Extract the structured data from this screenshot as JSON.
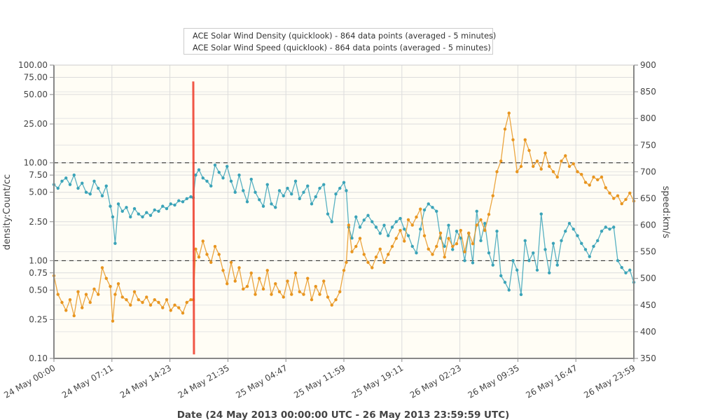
{
  "chart_data": {
    "type": "line",
    "title": "",
    "legend": {
      "placement": "top-center",
      "entries": [
        {
          "label": "ACE Solar Wind Density (quicklook) - 864 data points (averaged - 5 minutes)",
          "color": "#3aa3b8"
        },
        {
          "label": "ACE Solar Wind Speed (quicklook) - 864 data points (averaged - 5 minutes)",
          "color": "#e8951f"
        }
      ]
    },
    "xlabel": "Date (24 May 2013 00:00:00 UTC - 26 May 2013 23:59:59 UTC)",
    "x_range_hours": [
      0,
      72
    ],
    "x_ticks": [
      {
        "hour": 0,
        "label": "24 May 00:00"
      },
      {
        "hour": 7.2,
        "label": "24 May 07:11"
      },
      {
        "hour": 14.4,
        "label": "24 May 14:23"
      },
      {
        "hour": 21.6,
        "label": "24 May 21:35"
      },
      {
        "hour": 28.8,
        "label": "25 May 04:47"
      },
      {
        "hour": 36.0,
        "label": "25 May 11:59"
      },
      {
        "hour": 43.2,
        "label": "25 May 19:11"
      },
      {
        "hour": 50.4,
        "label": "26 May 02:23"
      },
      {
        "hour": 57.6,
        "label": "26 May 09:35"
      },
      {
        "hour": 64.8,
        "label": "26 May 16:47"
      },
      {
        "hour": 72.0,
        "label": "26 May 23:59"
      }
    ],
    "y_left": {
      "label": "density:Count/cc",
      "scale": "log",
      "range": [
        0.1,
        100
      ],
      "ticks": [
        {
          "value": 100,
          "label": "100.00"
        },
        {
          "value": 75,
          "label": "75.00"
        },
        {
          "value": 50,
          "label": "50.00"
        },
        {
          "value": 25,
          "label": "25.00"
        },
        {
          "value": 10,
          "label": "10.00"
        },
        {
          "value": 7.5,
          "label": "7.50"
        },
        {
          "value": 5,
          "label": "5.00"
        },
        {
          "value": 2.5,
          "label": "2.50"
        },
        {
          "value": 1,
          "label": "1.00"
        },
        {
          "value": 0.75,
          "label": "0.75"
        },
        {
          "value": 0.5,
          "label": "0.50"
        },
        {
          "value": 0.25,
          "label": "0.25"
        },
        {
          "value": 0.1,
          "label": "0.10"
        }
      ],
      "reference_lines": [
        10,
        1
      ]
    },
    "y_right": {
      "label": "speed:km/s",
      "scale": "linear",
      "range": [
        350,
        900
      ],
      "ticks": [
        900,
        850,
        800,
        750,
        700,
        650,
        600,
        550,
        500,
        450,
        400,
        350
      ]
    },
    "markers": [
      {
        "type": "vertical-line",
        "hour": 17.3,
        "color": "#ee4433",
        "from_density": 0.11,
        "to_density": 68
      }
    ],
    "series": [
      {
        "name": "ACE Solar Wind Density",
        "axis": "left",
        "color": "#3aa3b8",
        "x_hours": [
          0,
          0.5,
          1,
          1.5,
          2,
          2.5,
          3,
          3.5,
          4,
          4.5,
          5,
          5.5,
          6,
          6.5,
          7,
          7.3,
          7.6,
          8,
          8.5,
          9,
          9.5,
          10,
          10.5,
          11,
          11.5,
          12,
          12.5,
          13,
          13.5,
          14,
          14.5,
          15,
          15.5,
          16,
          16.5,
          17,
          17.3,
          17.6,
          18,
          18.5,
          19,
          19.5,
          20,
          20.5,
          21,
          21.5,
          22,
          22.5,
          23,
          23.5,
          24,
          24.5,
          25,
          25.5,
          26,
          26.5,
          27,
          27.5,
          28,
          28.5,
          29,
          29.5,
          30,
          30.5,
          31,
          31.5,
          32,
          32.5,
          33,
          33.5,
          34,
          34.5,
          35,
          35.5,
          36,
          36.3,
          36.6,
          37,
          37.5,
          38,
          38.5,
          39,
          39.5,
          40,
          40.5,
          41,
          41.5,
          42,
          42.5,
          43,
          43.5,
          44,
          44.5,
          45,
          45.5,
          46,
          46.5,
          47,
          47.5,
          48,
          48.5,
          49,
          49.5,
          50,
          50.5,
          51,
          51.5,
          52,
          52.5,
          53,
          53.5,
          54,
          54.5,
          55,
          55.5,
          56,
          56.5,
          57,
          57.5,
          58,
          58.5,
          59,
          59.5,
          60,
          60.5,
          61,
          61.5,
          62,
          62.5,
          63,
          63.5,
          64,
          64.5,
          65,
          65.5,
          66,
          66.5,
          67,
          67.5,
          68,
          68.5,
          69,
          69.5,
          70,
          70.5,
          71,
          71.5,
          72
        ],
        "values": [
          6.0,
          5.5,
          6.5,
          7.0,
          6.0,
          7.5,
          5.5,
          6.2,
          5.0,
          4.8,
          6.5,
          5.5,
          4.6,
          5.8,
          3.6,
          2.8,
          1.5,
          3.8,
          3.2,
          3.5,
          2.8,
          3.4,
          3.0,
          2.8,
          3.1,
          2.9,
          3.3,
          3.2,
          3.6,
          3.4,
          3.8,
          3.7,
          4.1,
          4.0,
          4.3,
          4.5,
          4.4,
          7.5,
          8.5,
          7.0,
          6.5,
          5.8,
          9.5,
          8.0,
          7.0,
          9.2,
          6.5,
          5.0,
          7.5,
          5.2,
          4.0,
          6.8,
          5.0,
          4.2,
          3.6,
          6.0,
          3.8,
          3.5,
          5.2,
          4.6,
          5.5,
          4.8,
          6.5,
          4.3,
          5.0,
          5.8,
          3.8,
          4.5,
          5.5,
          6.0,
          3.0,
          2.5,
          4.8,
          5.5,
          6.3,
          5.2,
          2.2,
          1.7,
          2.8,
          2.2,
          2.6,
          2.9,
          2.5,
          2.2,
          1.9,
          2.3,
          1.8,
          2.2,
          2.5,
          2.7,
          2.1,
          1.8,
          1.4,
          1.2,
          2.1,
          3.3,
          3.8,
          3.5,
          3.2,
          1.7,
          1.4,
          2.3,
          1.3,
          2.0,
          1.7,
          1.0,
          1.9,
          0.95,
          3.2,
          1.6,
          2.4,
          1.2,
          0.9,
          2.0,
          0.7,
          0.6,
          0.5,
          1.0,
          0.8,
          0.45,
          1.6,
          1.0,
          1.2,
          0.8,
          3.0,
          1.3,
          0.75,
          1.5,
          0.9,
          1.6,
          2.0,
          2.4,
          2.1,
          1.8,
          1.5,
          1.3,
          1.1,
          1.4,
          1.6,
          2.0,
          2.2,
          2.1,
          2.2,
          1.0,
          0.85,
          0.75,
          0.8,
          0.6,
          0.65,
          0.55,
          0.7,
          0.65,
          0.7,
          0.72
        ]
      },
      {
        "name": "ACE Solar Wind Speed",
        "axis": "right",
        "color": "#e8951f",
        "x_hours": [
          0,
          0.5,
          1,
          1.5,
          2,
          2.5,
          3,
          3.5,
          4,
          4.5,
          5,
          5.5,
          6,
          6.5,
          7,
          7.3,
          7.6,
          8,
          8.5,
          9,
          9.5,
          10,
          10.5,
          11,
          11.5,
          12,
          12.5,
          13,
          13.5,
          14,
          14.5,
          15,
          15.5,
          16,
          16.5,
          17,
          17.3,
          17.6,
          18,
          18.5,
          19,
          19.5,
          20,
          20.5,
          21,
          21.5,
          22,
          22.5,
          23,
          23.5,
          24,
          24.5,
          25,
          25.5,
          26,
          26.5,
          27,
          27.5,
          28,
          28.5,
          29,
          29.5,
          30,
          30.5,
          31,
          31.5,
          32,
          32.5,
          33,
          33.5,
          34,
          34.5,
          35,
          35.5,
          36,
          36.3,
          36.6,
          37,
          37.5,
          38,
          38.5,
          39,
          39.5,
          40,
          40.5,
          41,
          41.5,
          42,
          42.5,
          43,
          43.5,
          44,
          44.5,
          45,
          45.5,
          46,
          46.5,
          47,
          47.5,
          48,
          48.5,
          49,
          49.5,
          50,
          50.5,
          51,
          51.5,
          52,
          52.5,
          53,
          53.5,
          54,
          54.5,
          55,
          55.5,
          56,
          56.5,
          57,
          57.5,
          58,
          58.5,
          59,
          59.5,
          60,
          60.5,
          61,
          61.5,
          62,
          62.5,
          63,
          63.5,
          64,
          64.5,
          65,
          65.5,
          66,
          66.5,
          67,
          67.5,
          68,
          68.5,
          69,
          69.5,
          70,
          70.5,
          71,
          71.5,
          72
        ],
        "values": [
          505,
          470,
          455,
          440,
          460,
          430,
          475,
          445,
          470,
          455,
          480,
          470,
          520,
          500,
          485,
          420,
          470,
          490,
          465,
          460,
          450,
          475,
          460,
          455,
          465,
          450,
          460,
          455,
          445,
          460,
          440,
          450,
          445,
          435,
          455,
          460,
          460,
          555,
          540,
          570,
          545,
          530,
          560,
          545,
          515,
          490,
          530,
          495,
          520,
          480,
          485,
          510,
          470,
          500,
          480,
          515,
          470,
          490,
          475,
          465,
          495,
          470,
          510,
          475,
          470,
          500,
          460,
          485,
          470,
          495,
          465,
          450,
          460,
          475,
          515,
          530,
          600,
          550,
          560,
          575,
          545,
          530,
          520,
          540,
          555,
          530,
          545,
          560,
          575,
          590,
          570,
          610,
          600,
          615,
          630,
          580,
          555,
          545,
          560,
          585,
          540,
          575,
          560,
          565,
          590,
          550,
          585,
          565,
          600,
          610,
          590,
          620,
          655,
          700,
          720,
          780,
          810,
          760,
          700,
          710,
          760,
          740,
          710,
          720,
          705,
          735,
          710,
          700,
          690,
          720,
          730,
          710,
          715,
          700,
          695,
          680,
          675,
          690,
          685,
          690,
          670,
          660,
          650,
          655,
          640,
          648,
          660,
          645,
          635,
          630,
          620,
          610,
          600,
          595,
          630,
          650,
          645,
          640
        ]
      }
    ]
  }
}
